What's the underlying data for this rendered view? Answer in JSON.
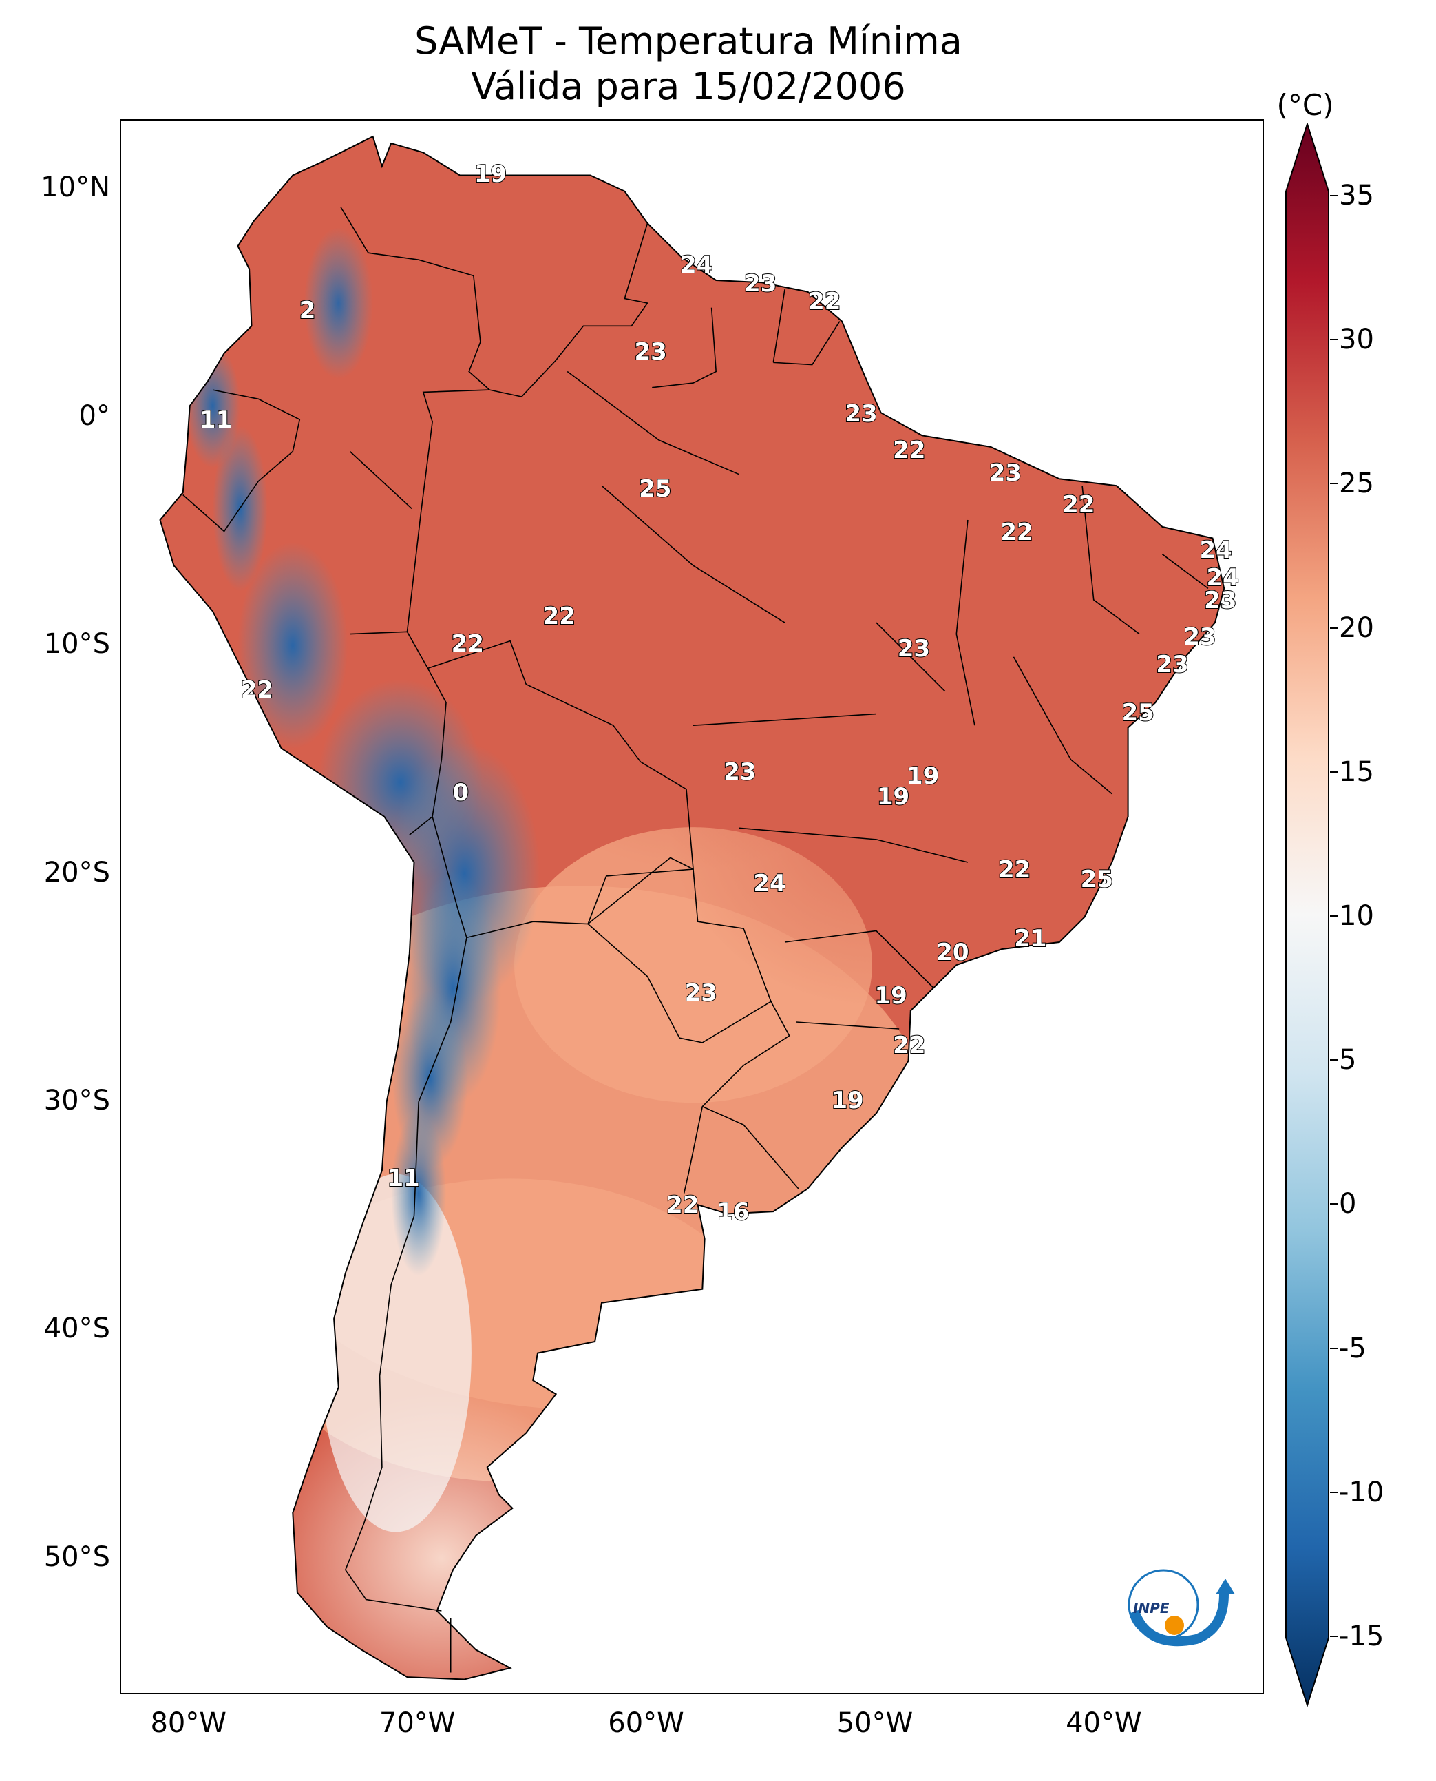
{
  "header": {
    "title_line1": "SAMeT - Temperatura Mínima",
    "title_line2": "Válida para 15/02/2006"
  },
  "axes": {
    "lat_ticks": [
      "10°N",
      "0°",
      "10°S",
      "20°S",
      "30°S",
      "40°S",
      "50°S"
    ],
    "lon_ticks": [
      "80°W",
      "70°W",
      "60°W",
      "50°W",
      "40°W"
    ]
  },
  "colorbar": {
    "unit": "(°C)",
    "ticks": [
      "35",
      "30",
      "25",
      "20",
      "15",
      "10",
      "5",
      "0",
      "-5",
      "-10",
      "-15"
    ],
    "colors": [
      "#053061",
      "#2166ac",
      "#4393c3",
      "#92c5de",
      "#d1e5f0",
      "#f7f7f7",
      "#fddbc7",
      "#f4a582",
      "#d6604d",
      "#b2182b",
      "#67001f"
    ]
  },
  "chart_data": {
    "type": "heatmap",
    "title": "SAMeT - Temperatura Mínima Válida para 15/02/2006",
    "colorbar_unit": "(°C)",
    "colorbar_range": [
      -15,
      35
    ],
    "lon_range": [
      -83,
      -33
    ],
    "lat_range": [
      -56,
      13
    ],
    "station_values": [
      {
        "lon": -66.8,
        "lat": 10.6,
        "value": "19"
      },
      {
        "lon": -57.8,
        "lat": 6.6,
        "value": "24"
      },
      {
        "lon": -55.0,
        "lat": 5.8,
        "value": "23"
      },
      {
        "lon": -52.2,
        "lat": 5.0,
        "value": "22"
      },
      {
        "lon": -74.8,
        "lat": 4.6,
        "value": "2"
      },
      {
        "lon": -59.8,
        "lat": 2.8,
        "value": "23"
      },
      {
        "lon": -50.6,
        "lat": 0.1,
        "value": "23"
      },
      {
        "lon": -78.8,
        "lat": -0.2,
        "value": "11"
      },
      {
        "lon": -48.5,
        "lat": -1.5,
        "value": "22"
      },
      {
        "lon": -59.6,
        "lat": -3.2,
        "value": "25"
      },
      {
        "lon": -44.3,
        "lat": -2.5,
        "value": "23"
      },
      {
        "lon": -41.1,
        "lat": -3.9,
        "value": "22"
      },
      {
        "lon": -43.8,
        "lat": -5.1,
        "value": "22"
      },
      {
        "lon": -35.1,
        "lat": -5.9,
        "value": "24"
      },
      {
        "lon": -34.8,
        "lat": -7.1,
        "value": "24"
      },
      {
        "lon": -34.9,
        "lat": -8.1,
        "value": "23"
      },
      {
        "lon": -63.8,
        "lat": -8.8,
        "value": "22"
      },
      {
        "lon": -67.8,
        "lat": -10.0,
        "value": "22"
      },
      {
        "lon": -48.3,
        "lat": -10.2,
        "value": "23"
      },
      {
        "lon": -35.8,
        "lat": -9.7,
        "value": "23"
      },
      {
        "lon": -37.0,
        "lat": -10.9,
        "value": "23"
      },
      {
        "lon": -77.0,
        "lat": -12.0,
        "value": "22"
      },
      {
        "lon": -38.5,
        "lat": -13.0,
        "value": "25"
      },
      {
        "lon": -55.9,
        "lat": -15.6,
        "value": "23"
      },
      {
        "lon": -47.9,
        "lat": -15.8,
        "value": "19"
      },
      {
        "lon": -49.2,
        "lat": -16.7,
        "value": "19"
      },
      {
        "lon": -68.1,
        "lat": -16.5,
        "value": "0"
      },
      {
        "lon": -43.9,
        "lat": -19.9,
        "value": "22"
      },
      {
        "lon": -40.3,
        "lat": -20.3,
        "value": "25"
      },
      {
        "lon": -54.6,
        "lat": -20.5,
        "value": "24"
      },
      {
        "lon": -43.2,
        "lat": -22.9,
        "value": "21"
      },
      {
        "lon": -46.6,
        "lat": -23.5,
        "value": "20"
      },
      {
        "lon": -57.6,
        "lat": -25.3,
        "value": "23"
      },
      {
        "lon": -49.3,
        "lat": -25.4,
        "value": "19"
      },
      {
        "lon": -48.5,
        "lat": -27.6,
        "value": "22"
      },
      {
        "lon": -51.2,
        "lat": -30.0,
        "value": "19"
      },
      {
        "lon": -70.6,
        "lat": -33.4,
        "value": "11"
      },
      {
        "lon": -58.4,
        "lat": -34.6,
        "value": "22"
      },
      {
        "lon": -56.2,
        "lat": -34.9,
        "value": "16"
      }
    ]
  }
}
